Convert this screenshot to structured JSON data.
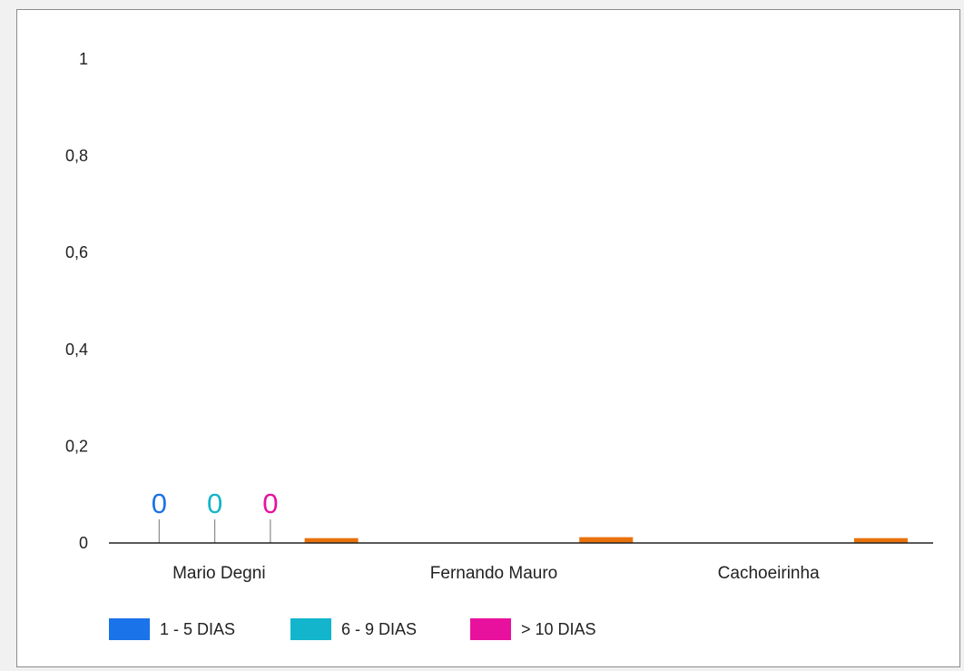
{
  "chart_data": {
    "type": "bar",
    "categories": [
      "Mario Degni",
      "Fernando Mauro",
      "Cachoeirinha"
    ],
    "series": [
      {
        "name": "1 - 5 DIAS",
        "color": "#1a73e8",
        "values": [
          0,
          null,
          null
        ]
      },
      {
        "name": "6 - 9 DIAS",
        "color": "#12b5cb",
        "values": [
          0,
          null,
          null
        ]
      },
      {
        "name": "> 10 DIAS",
        "color": "#e8119e",
        "values": [
          0,
          null,
          null
        ]
      },
      {
        "name": "",
        "color": "#e8710a",
        "values": [
          0.01,
          0.012,
          0.01
        ]
      }
    ],
    "data_labels": [
      "0",
      "0",
      "0"
    ],
    "y_ticks": [
      "0",
      "0,2",
      "0,4",
      "0,6",
      "0,8",
      "1"
    ],
    "y_tick_values": [
      0,
      0.2,
      0.4,
      0.6,
      0.8,
      1
    ],
    "ylim": [
      0,
      1
    ],
    "grid": false,
    "legend_position": "bottom-left",
    "title": "",
    "xlabel": "",
    "ylabel": ""
  }
}
